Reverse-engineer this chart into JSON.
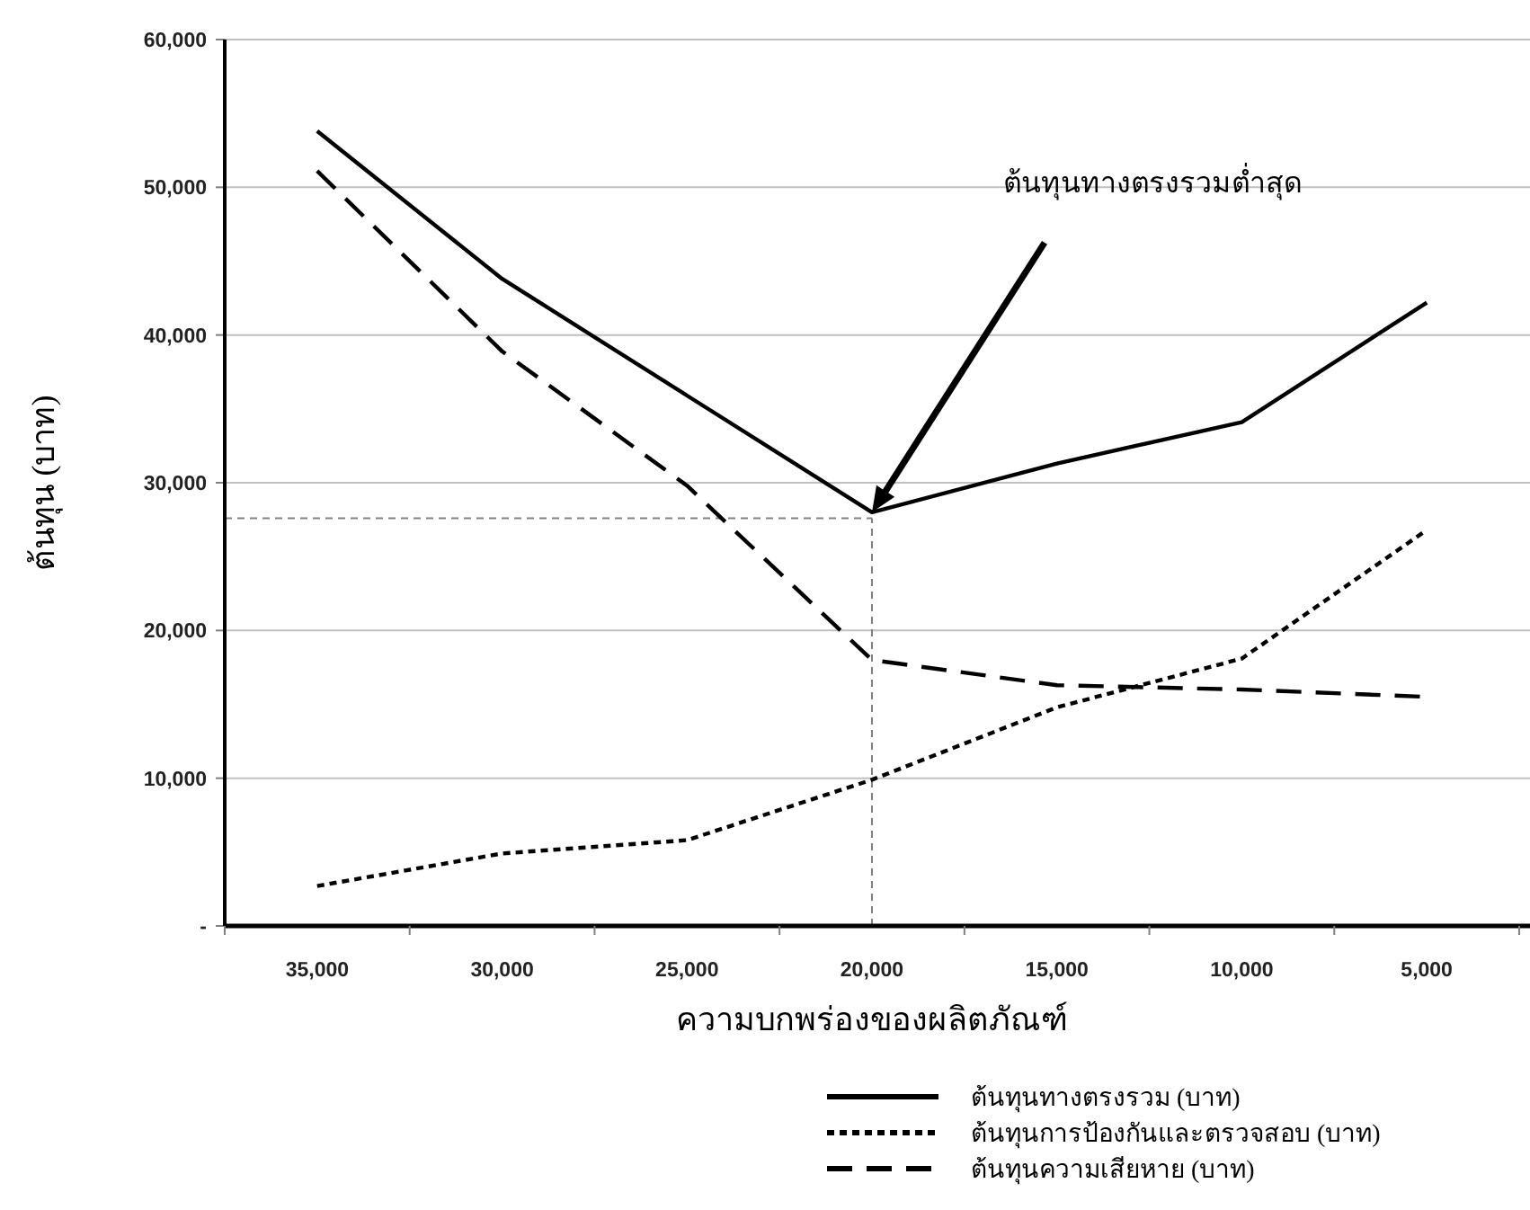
{
  "chart_data": {
    "type": "line",
    "xlabel": "ความบกพร่องของผลิตภัณฑ์",
    "ylabel": "ต้นทุน (บาท)",
    "categories": [
      "35,000",
      "30,000",
      "25,000",
      "20,000",
      "15,000",
      "10,000",
      "5,000"
    ],
    "ylim": [
      0,
      60000
    ],
    "yticks": [
      {
        "value": 0,
        "label": "-"
      },
      {
        "value": 10000,
        "label": "10,000"
      },
      {
        "value": 20000,
        "label": "20,000"
      },
      {
        "value": 30000,
        "label": "30,000"
      },
      {
        "value": 40000,
        "label": "40,000"
      },
      {
        "value": 50000,
        "label": "50,000"
      },
      {
        "value": 60000,
        "label": "60,000"
      }
    ],
    "grid": "y",
    "legend": "bottom right",
    "marker": "none",
    "series": [
      {
        "name": "ต้นทุนทางตรงรวม (บาท)",
        "color": "#000000",
        "line_style": "solid",
        "values": [
          53800,
          43800,
          35900,
          28000,
          31300,
          34100,
          42200
        ]
      },
      {
        "name": "ต้นทุนการป้องกันและตรวจสอบ (บาท)",
        "color": "#000000",
        "line_style": "dotted",
        "values": [
          2700,
          4900,
          5800,
          9900,
          14800,
          18100,
          26800
        ]
      },
      {
        "name": "ต้นทุนความเสียหาย (บาท)",
        "color": "#000000",
        "line_style": "dashed",
        "values": [
          51100,
          38900,
          29800,
          18000,
          16300,
          16000,
          15500
        ]
      }
    ],
    "ref_lines": [
      {
        "axis": "y",
        "value": 27600,
        "color": "#808080",
        "line_style": "dotted"
      },
      {
        "axis": "x",
        "value": "20,000",
        "color": "#808080",
        "line_style": "dotted"
      }
    ],
    "annotations": [
      "ต้นทุนทางตรงรวมต่ำสุด"
    ]
  }
}
